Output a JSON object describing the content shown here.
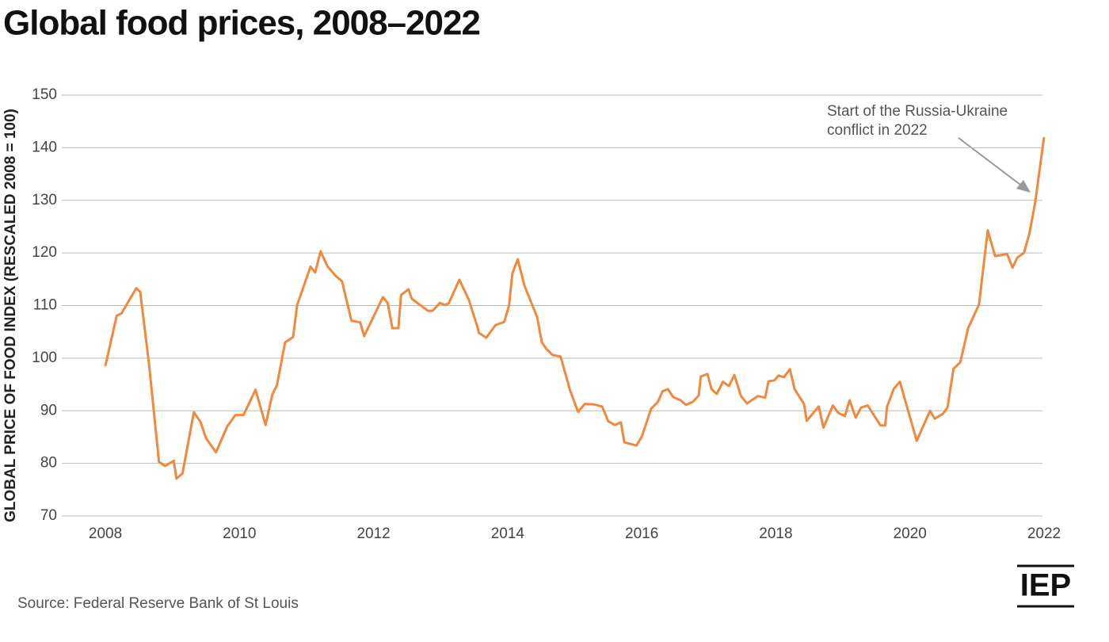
{
  "chart_data": {
    "type": "line",
    "title": "Global food prices, 2008–2022",
    "y_axis_label": "GLOBAL PRICE OF FOOD INDEX (RESCALED 2008 = 100)",
    "annotation": "Start of the Russia-Ukraine conflict in 2022",
    "source": "Source: Federal Reserve Bank of St Louis",
    "logo": "IEP",
    "xlim": [
      2007.35,
      2022.0
    ],
    "xticks": [
      2008,
      2010,
      2012,
      2014,
      2016,
      2018,
      2020,
      2022
    ],
    "ylim": [
      70,
      150
    ],
    "yticks": [
      70,
      80,
      90,
      100,
      110,
      120,
      130,
      140,
      150
    ],
    "grid": true,
    "series": [
      {
        "name": "Global price of food index",
        "color": "#f0883e",
        "x": [
          2008.0,
          2008.17,
          2008.24,
          2008.46,
          2008.52,
          2008.65,
          2008.8,
          2008.89,
          2009.02,
          2009.06,
          2009.15,
          2009.32,
          2009.42,
          2009.5,
          2009.65,
          2009.82,
          2009.94,
          2010.06,
          2010.24,
          2010.39,
          2010.49,
          2010.56,
          2010.68,
          2010.8,
          2010.86,
          2011.06,
          2011.13,
          2011.21,
          2011.31,
          2011.43,
          2011.53,
          2011.67,
          2011.8,
          2011.86,
          2012.14,
          2012.21,
          2012.28,
          2012.37,
          2012.41,
          2012.52,
          2012.57,
          2012.81,
          2012.88,
          2012.99,
          2013.06,
          2013.12,
          2013.28,
          2013.42,
          2013.55,
          2013.57,
          2013.68,
          2013.82,
          2013.95,
          2014.02,
          2014.07,
          2014.15,
          2014.25,
          2014.44,
          2014.51,
          2014.58,
          2014.67,
          2014.79,
          2014.93,
          2015.05,
          2015.15,
          2015.29,
          2015.41,
          2015.5,
          2015.6,
          2015.69,
          2015.74,
          2015.92,
          2016.0,
          2016.14,
          2016.24,
          2016.31,
          2016.39,
          2016.47,
          2016.58,
          2016.66,
          2016.76,
          2016.85,
          2016.88,
          2016.98,
          2017.04,
          2017.12,
          2017.21,
          2017.3,
          2017.38,
          2017.48,
          2017.57,
          2017.73,
          2017.84,
          2017.89,
          2017.98,
          2018.04,
          2018.12,
          2018.21,
          2018.28,
          2018.42,
          2018.46,
          2018.64,
          2018.71,
          2018.85,
          2018.93,
          2019.03,
          2019.1,
          2019.19,
          2019.27,
          2019.37,
          2019.56,
          2019.63,
          2019.66,
          2019.76,
          2019.85,
          2020.1,
          2020.3,
          2020.37,
          2020.49,
          2020.56,
          2020.65,
          2020.75,
          2020.87,
          2021.03,
          2021.16,
          2021.27,
          2021.45,
          2021.53,
          2021.6,
          2021.7,
          2021.78,
          2021.87,
          2022.0
        ],
        "values": [
          98.5,
          108.1,
          108.5,
          113.3,
          112.6,
          99,
          80.3,
          79.5,
          80.5,
          77.1,
          78.1,
          89.7,
          87.9,
          84.8,
          82.1,
          87.1,
          89.2,
          89.2,
          94,
          87.3,
          93.1,
          94.9,
          103,
          104,
          110.1,
          117.4,
          116.3,
          120.3,
          117.5,
          115.7,
          114.6,
          107.1,
          106.8,
          104.2,
          111.6,
          110.5,
          105.7,
          105.7,
          112,
          113.1,
          111.3,
          109,
          109,
          110.5,
          110.1,
          110.4,
          114.9,
          111.1,
          105.9,
          104.8,
          103.9,
          106.3,
          106.9,
          110,
          116.1,
          118.8,
          113.8,
          107.8,
          103,
          101.7,
          100.6,
          100.3,
          93.9,
          89.8,
          91.3,
          91.2,
          90.8,
          88,
          87.3,
          87.8,
          84,
          83.4,
          85.1,
          90.4,
          91.7,
          93.7,
          94.1,
          92.6,
          92,
          91.1,
          91.7,
          92.9,
          96.5,
          97,
          94.1,
          93.2,
          95.5,
          94.7,
          96.8,
          92.8,
          91.4,
          92.8,
          92.5,
          95.6,
          95.8,
          96.7,
          96.4,
          97.9,
          94.1,
          91.3,
          88.1,
          90.8,
          86.8,
          91,
          89.6,
          89,
          92,
          88.7,
          90.6,
          91,
          87.2,
          87.2,
          90.8,
          94.2,
          95.5,
          84.3,
          90,
          88.5,
          89.4,
          90.6,
          98,
          99.2,
          105.8,
          110.2,
          124.3,
          119.4,
          119.8,
          117.2,
          119.1,
          120,
          123.6,
          129.8,
          142
        ]
      }
    ]
  }
}
